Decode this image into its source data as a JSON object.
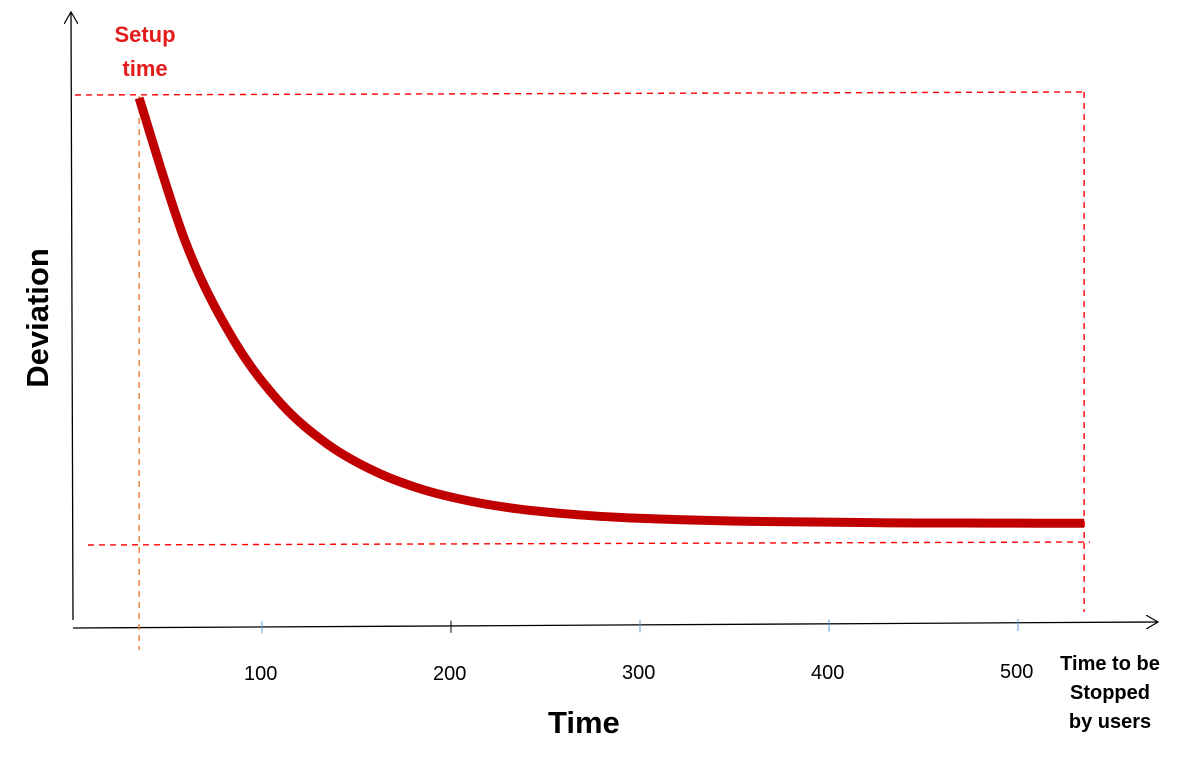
{
  "chart_data": {
    "type": "line",
    "title": "",
    "xlabel": "Time",
    "ylabel": "Deviation",
    "x_ticks": [
      100,
      200,
      300,
      400,
      500
    ],
    "xlim": [
      0,
      550
    ],
    "y_numeric_labels": false,
    "series": [
      {
        "color": "#c00000",
        "shape": "decaying curve",
        "x": [
          35,
          60,
          85,
          110,
          135,
          160,
          185,
          210,
          235,
          260,
          285,
          310,
          335,
          360,
          385,
          410,
          435,
          460,
          485,
          510,
          535
        ],
        "y": [
          1.0,
          0.697,
          0.499,
          0.368,
          0.283,
          0.227,
          0.19,
          0.166,
          0.15,
          0.14,
          0.133,
          0.129,
          0.126,
          0.124,
          0.123,
          0.122,
          0.121,
          0.1207,
          0.1204,
          0.1202,
          0.12
        ]
      }
    ],
    "reference_lines": {
      "top_level": 1.0,
      "bottom_level": 0.1,
      "start_x": 35,
      "end_x": 535
    },
    "annotations": {
      "setup": "Setup time",
      "end_line1": "Time to be",
      "end_line2": "Stopped",
      "end_line3": "by users"
    },
    "colors": {
      "curve": "#c00000",
      "guides": "#ff0000",
      "setup_line": "#ed7d31",
      "setup_text": "#e31b1b",
      "axis": "#000000",
      "tick": "#5b9bd5"
    }
  }
}
